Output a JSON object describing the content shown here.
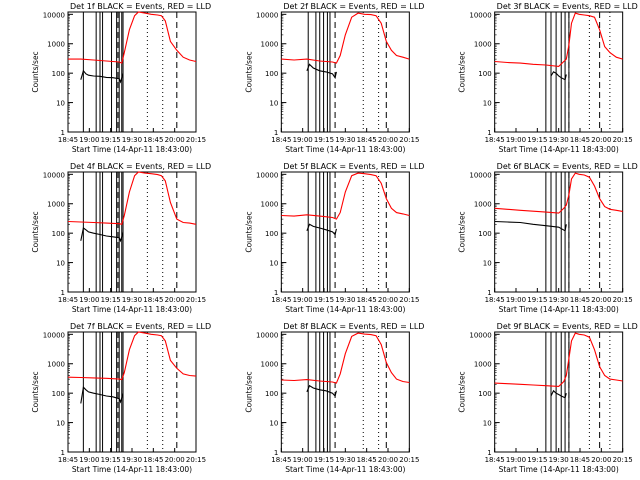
{
  "layout": {
    "rows": 3,
    "cols": 3
  },
  "colors": {
    "events": "#000000",
    "lld": "#ff0000",
    "axes": "#000000",
    "background": "#ffffff"
  },
  "common": {
    "xlabel": "Start Time (14-Apr-11 18:43:00)",
    "ylabel": "Counts/sec",
    "xtick_labels": [
      "18:45",
      "19:00",
      "19:15",
      "19:30",
      "18:45",
      "20:00",
      "20:15"
    ],
    "ytick_labels": [
      "1",
      "10",
      "100",
      "1000",
      "10000"
    ]
  },
  "chart_data": [
    {
      "type": "line",
      "title": "Det 1f BLACK = Events, RED = LLD",
      "yscale": "log",
      "xlim": [
        0,
        100
      ],
      "ylim": [
        1,
        12000
      ],
      "vlines_solid": [
        12,
        22,
        25,
        27,
        34,
        38,
        40,
        42,
        43
      ],
      "vlines_dashed": [
        39,
        85
      ],
      "vlines_dotted": [
        62,
        74
      ],
      "series": [
        {
          "name": "BLACK = Events",
          "color": "black",
          "x": [
            10,
            12,
            14,
            16,
            20,
            25,
            30,
            35,
            40,
            41,
            42,
            43
          ],
          "y": [
            60,
            120,
            95,
            85,
            80,
            78,
            72,
            70,
            65,
            50,
            70,
            100
          ]
        },
        {
          "name": "RED = LLD",
          "color": "red",
          "x": [
            0,
            10,
            20,
            30,
            40,
            42,
            44,
            48,
            52,
            55,
            60,
            65,
            70,
            73,
            76,
            80,
            85,
            90,
            95,
            100
          ],
          "y": [
            300,
            300,
            280,
            260,
            240,
            220,
            500,
            3000,
            9000,
            12000,
            11000,
            10000,
            9500,
            9000,
            6000,
            1200,
            600,
            350,
            280,
            250
          ]
        }
      ]
    },
    {
      "type": "line",
      "title": "Det 2f BLACK = Events, RED = LLD",
      "yscale": "log",
      "xlim": [
        0,
        100
      ],
      "ylim": [
        1,
        12000
      ],
      "vlines_solid": [
        21,
        27,
        30,
        33,
        36,
        38
      ],
      "vlines_dashed": [
        42,
        82
      ],
      "vlines_dotted": [
        64,
        76
      ],
      "series": [
        {
          "name": "BLACK = Events",
          "color": "black",
          "x": [
            20,
            22,
            25,
            30,
            35,
            40,
            42,
            43
          ],
          "y": [
            120,
            200,
            150,
            120,
            110,
            95,
            70,
            110
          ]
        },
        {
          "name": "RED = LLD",
          "color": "red",
          "x": [
            0,
            10,
            20,
            30,
            40,
            43,
            46,
            50,
            55,
            60,
            65,
            70,
            74,
            78,
            82,
            86,
            90,
            95,
            100
          ],
          "y": [
            300,
            280,
            300,
            260,
            240,
            220,
            400,
            2000,
            8000,
            11000,
            10000,
            9800,
            9000,
            5000,
            1200,
            600,
            400,
            350,
            300
          ]
        }
      ]
    },
    {
      "type": "line",
      "title": "Det 3f BLACK = Events, RED = LLD",
      "yscale": "log",
      "xlim": [
        0,
        100
      ],
      "ylim": [
        1,
        12000
      ],
      "vlines_solid": [
        40,
        44,
        48,
        52,
        55,
        58
      ],
      "vlines_dashed": [
        58,
        82
      ],
      "vlines_dotted": [
        74,
        90
      ],
      "series": [
        {
          "name": "BLACK = Events",
          "color": "black",
          "x": [
            44,
            46,
            48,
            50,
            52,
            55,
            56
          ],
          "y": [
            80,
            110,
            100,
            80,
            70,
            60,
            90
          ]
        },
        {
          "name": "RED = LLD",
          "color": "red",
          "x": [
            0,
            10,
            20,
            30,
            40,
            50,
            54,
            56,
            58,
            60,
            63,
            66,
            70,
            74,
            78,
            82,
            86,
            90,
            95,
            100
          ],
          "y": [
            250,
            230,
            220,
            200,
            190,
            170,
            250,
            300,
            900,
            5000,
            11000,
            10000,
            9500,
            9000,
            8000,
            3000,
            800,
            500,
            350,
            300
          ]
        }
      ]
    },
    {
      "type": "line",
      "title": "Det 4f BLACK = Events, RED = LLD",
      "yscale": "log",
      "xlim": [
        0,
        100
      ],
      "ylim": [
        1,
        12000
      ],
      "vlines_solid": [
        12,
        22,
        25,
        27,
        34,
        38,
        40,
        42,
        43
      ],
      "vlines_dashed": [
        39,
        85
      ],
      "vlines_dotted": [
        62,
        74
      ],
      "series": [
        {
          "name": "BLACK = Events",
          "color": "black",
          "x": [
            10,
            12,
            14,
            16,
            20,
            25,
            30,
            35,
            40,
            41,
            42,
            43
          ],
          "y": [
            55,
            150,
            130,
            110,
            100,
            90,
            80,
            75,
            70,
            55,
            75,
            110
          ]
        },
        {
          "name": "RED = LLD",
          "color": "red",
          "x": [
            0,
            10,
            20,
            30,
            40,
            42,
            44,
            48,
            52,
            55,
            60,
            65,
            70,
            73,
            76,
            80,
            85,
            90,
            95,
            100
          ],
          "y": [
            250,
            240,
            230,
            220,
            210,
            200,
            400,
            2500,
            9000,
            12000,
            11000,
            10500,
            9800,
            9000,
            6000,
            1100,
            300,
            230,
            220,
            200
          ]
        }
      ]
    },
    {
      "type": "line",
      "title": "Det 5f BLACK = Events, RED = LLD",
      "yscale": "log",
      "xlim": [
        0,
        100
      ],
      "ylim": [
        1,
        12000
      ],
      "vlines_solid": [
        21,
        27,
        30,
        33,
        36,
        38
      ],
      "vlines_dashed": [
        42,
        82
      ],
      "vlines_dotted": [
        64,
        76
      ],
      "series": [
        {
          "name": "BLACK = Events",
          "color": "black",
          "x": [
            20,
            22,
            25,
            30,
            35,
            40,
            42,
            43
          ],
          "y": [
            120,
            200,
            170,
            150,
            130,
            110,
            90,
            140
          ]
        },
        {
          "name": "RED = LLD",
          "color": "red",
          "x": [
            0,
            10,
            20,
            30,
            40,
            43,
            46,
            50,
            55,
            60,
            65,
            70,
            74,
            78,
            82,
            86,
            90,
            95,
            100
          ],
          "y": [
            400,
            380,
            420,
            380,
            340,
            300,
            500,
            2500,
            9000,
            11000,
            10500,
            9800,
            9000,
            5000,
            1500,
            700,
            500,
            450,
            400
          ]
        }
      ]
    },
    {
      "type": "line",
      "title": "Det 6f BLACK = Events, RED = LLD",
      "yscale": "log",
      "xlim": [
        0,
        100
      ],
      "ylim": [
        1,
        12000
      ],
      "vlines_solid": [
        40,
        44,
        48,
        52,
        55,
        58
      ],
      "vlines_dashed": [
        58,
        82
      ],
      "vlines_dotted": [
        74,
        90
      ],
      "series": [
        {
          "name": "BLACK = Events",
          "color": "black",
          "x": [
            0,
            10,
            20,
            30,
            40,
            50,
            55,
            56
          ],
          "y": [
            250,
            240,
            230,
            200,
            180,
            160,
            120,
            200
          ]
        },
        {
          "name": "RED = LLD",
          "color": "red",
          "x": [
            0,
            10,
            20,
            30,
            40,
            50,
            54,
            56,
            58,
            60,
            63,
            66,
            70,
            74,
            78,
            82,
            86,
            90,
            95,
            100
          ],
          "y": [
            700,
            650,
            600,
            560,
            520,
            480,
            700,
            900,
            2000,
            7000,
            11000,
            10000,
            9500,
            8000,
            4000,
            1500,
            800,
            650,
            600,
            550
          ]
        }
      ]
    },
    {
      "type": "line",
      "title": "Det 7f BLACK = Events, RED = LLD",
      "yscale": "log",
      "xlim": [
        0,
        100
      ],
      "ylim": [
        1,
        12000
      ],
      "vlines_solid": [
        12,
        22,
        25,
        27,
        34,
        38,
        40,
        42,
        43
      ],
      "vlines_dashed": [
        39,
        85
      ],
      "vlines_dotted": [
        62,
        74
      ],
      "series": [
        {
          "name": "BLACK = Events",
          "color": "black",
          "x": [
            10,
            12,
            14,
            16,
            20,
            25,
            30,
            35,
            40,
            41,
            42,
            43
          ],
          "y": [
            45,
            160,
            130,
            110,
            100,
            90,
            80,
            75,
            65,
            50,
            70,
            100
          ]
        },
        {
          "name": "RED = LLD",
          "color": "red",
          "x": [
            0,
            10,
            20,
            30,
            40,
            42,
            44,
            48,
            52,
            55,
            60,
            65,
            70,
            73,
            76,
            80,
            85,
            90,
            95,
            100
          ],
          "y": [
            350,
            340,
            330,
            320,
            300,
            290,
            500,
            3000,
            9000,
            12000,
            11000,
            10000,
            9500,
            9000,
            6000,
            1300,
            700,
            450,
            400,
            380
          ]
        }
      ]
    },
    {
      "type": "line",
      "title": "Det 8f BLACK = Events, RED = LLD",
      "yscale": "log",
      "xlim": [
        0,
        100
      ],
      "ylim": [
        1,
        12000
      ],
      "vlines_solid": [
        21,
        27,
        30,
        33,
        36,
        38
      ],
      "vlines_dashed": [
        42,
        82
      ],
      "vlines_dotted": [
        64,
        76
      ],
      "series": [
        {
          "name": "BLACK = Events",
          "color": "black",
          "x": [
            20,
            22,
            25,
            30,
            35,
            40,
            42,
            43
          ],
          "y": [
            110,
            180,
            150,
            130,
            120,
            100,
            80,
            120
          ]
        },
        {
          "name": "RED = LLD",
          "color": "red",
          "x": [
            0,
            10,
            20,
            30,
            40,
            43,
            46,
            50,
            55,
            60,
            65,
            70,
            74,
            78,
            82,
            86,
            90,
            95,
            100
          ],
          "y": [
            280,
            270,
            290,
            260,
            240,
            220,
            450,
            2200,
            8500,
            11000,
            10200,
            9800,
            9000,
            4500,
            1100,
            500,
            300,
            250,
            230
          ]
        }
      ]
    },
    {
      "type": "line",
      "title": "Det 9f BLACK = Events, RED = LLD",
      "yscale": "log",
      "xlim": [
        0,
        100
      ],
      "ylim": [
        1,
        12000
      ],
      "vlines_solid": [
        40,
        44,
        48,
        52,
        55,
        58
      ],
      "vlines_dashed": [
        58,
        82
      ],
      "vlines_dotted": [
        74,
        90
      ],
      "series": [
        {
          "name": "BLACK = Events",
          "color": "black",
          "x": [
            44,
            46,
            48,
            50,
            52,
            55,
            56
          ],
          "y": [
            80,
            120,
            100,
            90,
            80,
            70,
            100
          ]
        },
        {
          "name": "RED = LLD",
          "color": "red",
          "x": [
            0,
            10,
            20,
            30,
            40,
            50,
            54,
            56,
            58,
            60,
            63,
            66,
            70,
            74,
            78,
            82,
            86,
            90,
            95,
            100
          ],
          "y": [
            220,
            210,
            200,
            190,
            180,
            170,
            250,
            400,
            1500,
            6000,
            11000,
            10000,
            9500,
            8000,
            3000,
            800,
            400,
            300,
            280,
            260
          ]
        }
      ]
    }
  ]
}
